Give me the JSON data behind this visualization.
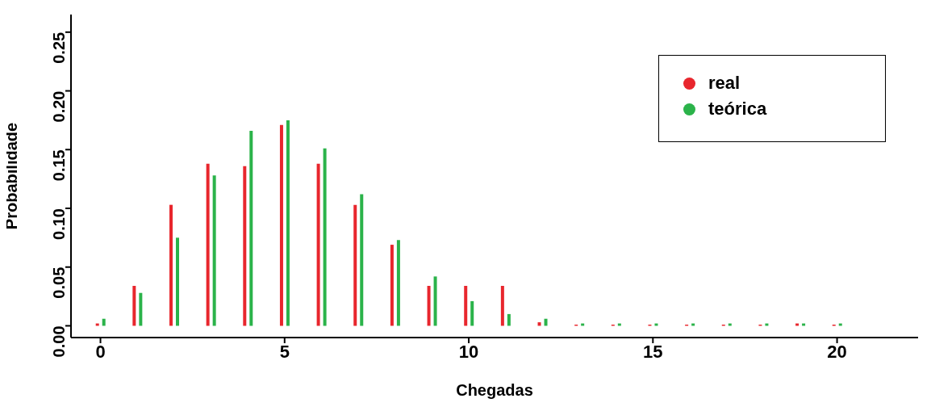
{
  "chart_data": {
    "type": "bar",
    "xlabel": "Chegadas",
    "ylabel": "Probabilidade",
    "x": [
      0,
      1,
      2,
      3,
      4,
      5,
      6,
      7,
      8,
      9,
      10,
      11,
      12,
      13,
      14,
      15,
      16,
      17,
      18,
      19,
      20
    ],
    "series": [
      {
        "name": "real",
        "color": "#e8262d",
        "values": [
          0.002,
          0.034,
          0.103,
          0.138,
          0.136,
          0.171,
          0.138,
          0.103,
          0.069,
          0.034,
          0.034,
          0.034,
          0.003,
          0.001,
          0.001,
          0.001,
          0.001,
          0.001,
          0.001,
          0.002,
          0.001
        ]
      },
      {
        "name": "teórica",
        "color": "#2bb34a",
        "values": [
          0.006,
          0.028,
          0.075,
          0.128,
          0.166,
          0.175,
          0.151,
          0.112,
          0.073,
          0.042,
          0.021,
          0.01,
          0.006,
          0.002,
          0.002,
          0.002,
          0.002,
          0.002,
          0.002,
          0.002,
          0.002
        ]
      }
    ],
    "xlim": [
      -0.8,
      22.2
    ],
    "xticks": [
      0,
      5,
      10,
      15,
      20
    ],
    "ylim": [
      -0.01,
      0.265
    ],
    "yticks": [
      {
        "value": 0,
        "label": "0.00"
      },
      {
        "value": 0.05,
        "label": "0.05"
      },
      {
        "value": 0.1,
        "label": "0.10"
      },
      {
        "value": 0.15,
        "label": "0.15"
      },
      {
        "value": 0.2,
        "label": "0.20"
      },
      {
        "value": 0.25,
        "label": "0.25"
      }
    ],
    "grid": false,
    "legend": "top right",
    "marker": "circle"
  }
}
